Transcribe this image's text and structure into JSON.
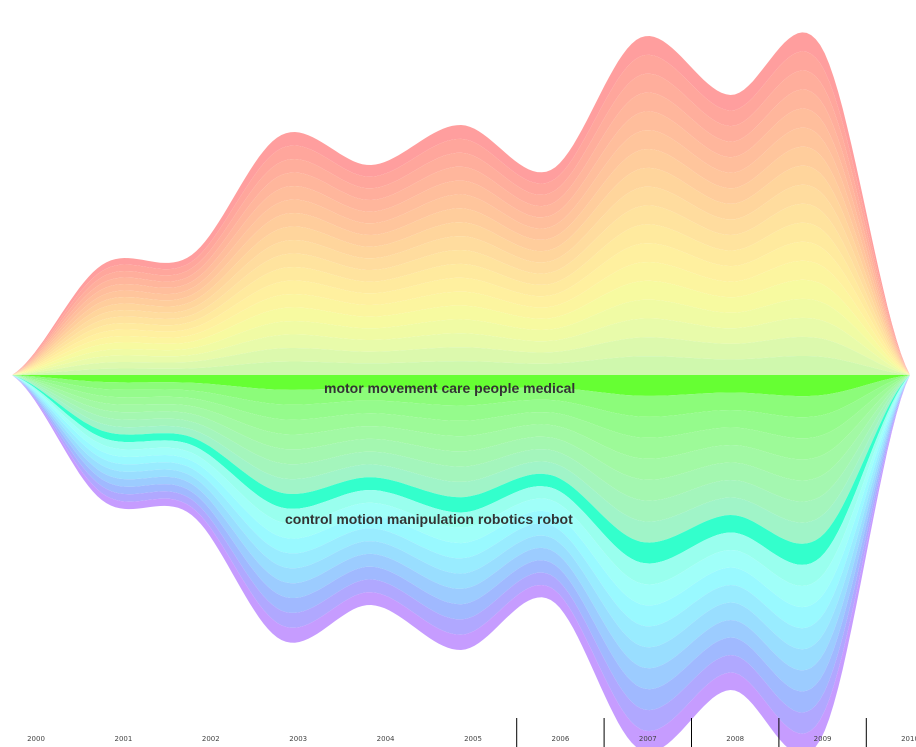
{
  "chart_data": {
    "type": "area",
    "subtype": "streamgraph",
    "title": "",
    "xlabel": "",
    "ylabel": "",
    "x": [
      "2000",
      "2001",
      "2002",
      "2003",
      "2004",
      "2005",
      "2006",
      "2007",
      "2008",
      "2009",
      "2010"
    ],
    "series_summary": {
      "upper_group_total": [
        48,
        44,
        48,
        96,
        84,
        100,
        82,
        135,
        112,
        132,
        0
      ],
      "lower_group_total": [
        54,
        50,
        56,
        106,
        92,
        110,
        90,
        150,
        126,
        146,
        0
      ]
    },
    "upper_colors": [
      "#ff9e9e",
      "#ffa69c",
      "#ffae9c",
      "#ffb69c",
      "#ffbe9c",
      "#ffc59c",
      "#ffcd9c",
      "#ffd59c",
      "#ffdc9e",
      "#ffe39e",
      "#ffea9e",
      "#fff09f",
      "#fcf59f",
      "#f7faa0",
      "#f0fba4",
      "#e8fbaa",
      "#dcf9ad",
      "#cff8ad"
    ],
    "lower_colors": [
      "#66ff33",
      "#8cfc7a",
      "#95fb8c",
      "#9dfa98",
      "#a2f9a4",
      "#a4f7b0",
      "#a4f5bc",
      "#a0f4c8",
      "#33ffcc",
      "#99ffee",
      "#a0fff9",
      "#99f9ff",
      "#99ecff",
      "#99deff",
      "#9cccff",
      "#a0b9ff",
      "#b0a8ff",
      "#c69cff"
    ],
    "labels": [
      "motor movement care people medical",
      "control motion manipulation robotics robot"
    ]
  }
}
